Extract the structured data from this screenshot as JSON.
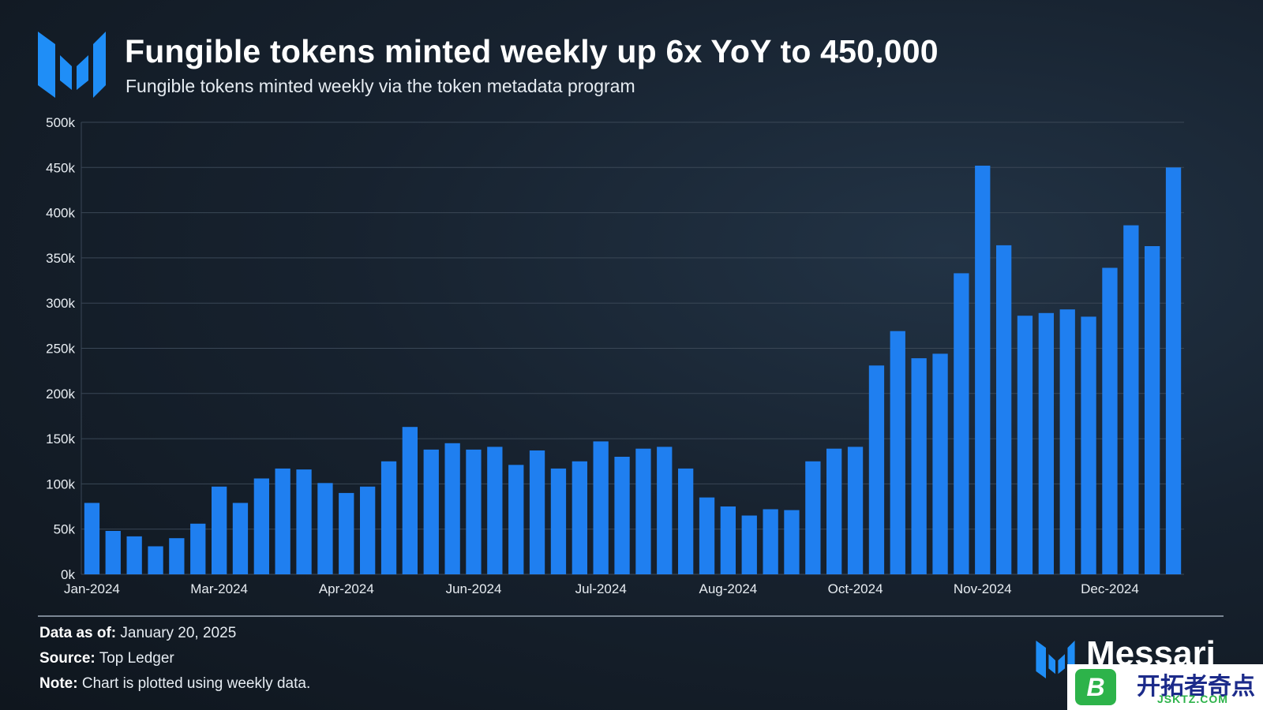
{
  "header": {
    "title": "Fungible tokens minted weekly up 6x YoY to 450,000",
    "subtitle": "Fungible tokens minted weekly via the token metadata program"
  },
  "colors": {
    "bar": "#1f7ff0",
    "grid": "#3a4756",
    "accent": "#1f8ef7"
  },
  "chart_data": {
    "type": "bar",
    "title": "Fungible tokens minted weekly up 6x YoY to 450,000",
    "xlabel": "",
    "ylabel": "",
    "ylim": [
      0,
      500000
    ],
    "y_ticks": [
      0,
      50000,
      100000,
      150000,
      200000,
      250000,
      300000,
      350000,
      400000,
      450000,
      500000
    ],
    "y_tick_labels": [
      "0k",
      "50k",
      "100k",
      "150k",
      "200k",
      "250k",
      "300k",
      "350k",
      "400k",
      "450k",
      "500k"
    ],
    "x_tick_labels": [
      {
        "label": "Jan-2024",
        "index": 0
      },
      {
        "label": "Mar-2024",
        "index": 6
      },
      {
        "label": "Apr-2024",
        "index": 12
      },
      {
        "label": "Jun-2024",
        "index": 18
      },
      {
        "label": "Jul-2024",
        "index": 24
      },
      {
        "label": "Aug-2024",
        "index": 30
      },
      {
        "label": "Oct-2024",
        "index": 36
      },
      {
        "label": "Nov-2024",
        "index": 42
      },
      {
        "label": "Dec-2024",
        "index": 48
      }
    ],
    "grid": true,
    "legend": "none",
    "values": [
      79000,
      48000,
      42000,
      31000,
      40000,
      56000,
      97000,
      79000,
      106000,
      117000,
      116000,
      101000,
      90000,
      97000,
      125000,
      163000,
      138000,
      145000,
      138000,
      141000,
      121000,
      137000,
      117000,
      125000,
      147000,
      130000,
      139000,
      141000,
      117000,
      85000,
      75000,
      65000,
      72000,
      71000,
      125000,
      139000,
      141000,
      231000,
      269000,
      239000,
      244000,
      333000,
      452000,
      364000,
      286000,
      289000,
      293000,
      285000,
      339000,
      386000,
      363000,
      450000
    ]
  },
  "footer": {
    "data_as_of_label": "Data as of:",
    "data_as_of_value": "January 20, 2025",
    "source_label": "Source:",
    "source_value": "Top Ledger",
    "note_label": "Note:",
    "note_value": "Chart is plotted using weekly data."
  },
  "brand": {
    "name": "Messari",
    "logo_icon": "messari-logo-icon"
  },
  "watermark": {
    "cn": "开拓者奇点",
    "en": "JSKTZ.COM",
    "icon_letter": "B"
  }
}
